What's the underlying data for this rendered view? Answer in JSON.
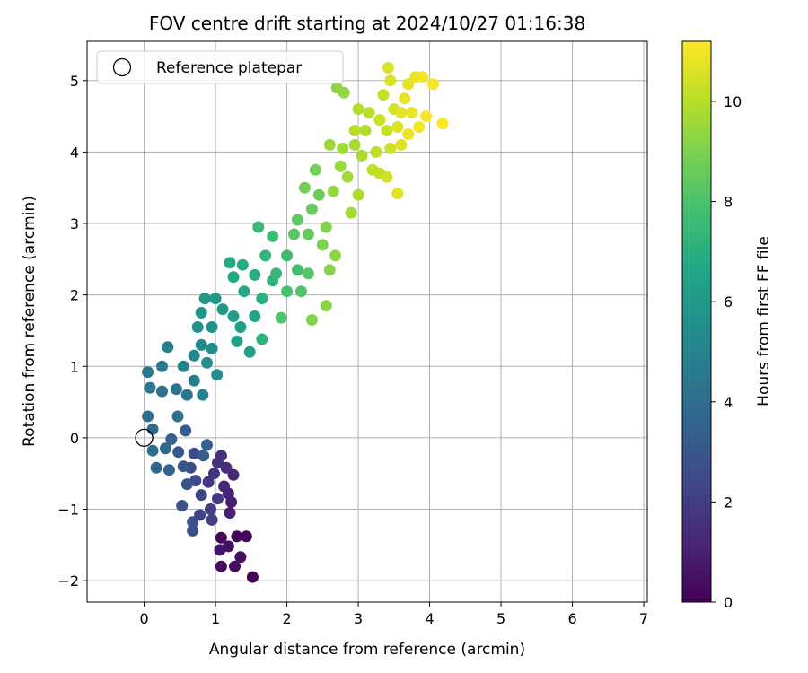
{
  "chart_data": {
    "type": "scatter",
    "title": "FOV centre drift starting at 2024/10/27 01:16:38",
    "xlabel": "Angular distance from reference (arcmin)",
    "ylabel": "Rotation from reference (arcmin)",
    "xlim": [
      -0.8,
      7.05
    ],
    "ylim": [
      -2.3,
      5.55
    ],
    "xticks": [
      0,
      1,
      2,
      3,
      4,
      5,
      6,
      7
    ],
    "yticks": [
      -2,
      -1,
      0,
      1,
      2,
      3,
      4,
      5
    ],
    "xtick_labels": [
      "0",
      "1",
      "2",
      "3",
      "4",
      "5",
      "6",
      "7"
    ],
    "ytick_labels": [
      "−2",
      "−1",
      "0",
      "1",
      "2",
      "3",
      "4",
      "5"
    ],
    "grid": true,
    "legend": {
      "position": "top-left",
      "entries": [
        "Reference platepar"
      ]
    },
    "reference_point": {
      "x": 0,
      "y": 0,
      "marker": "open-circle"
    },
    "colorbar": {
      "label": "Hours from first FF file",
      "range": [
        0,
        11.2
      ],
      "ticks": [
        0,
        2,
        4,
        6,
        8,
        10
      ],
      "tick_labels": [
        "0",
        "2",
        "4",
        "6",
        "8",
        "10"
      ],
      "colormap": "viridis"
    },
    "series": [
      {
        "points": [
          {
            "x": 1.3,
            "y": -1.38,
            "c": 0.1
          },
          {
            "x": 1.43,
            "y": -1.38,
            "c": 0.2
          },
          {
            "x": 1.08,
            "y": -1.4,
            "c": 0.2
          },
          {
            "x": 1.52,
            "y": -1.95,
            "c": 0.1
          },
          {
            "x": 1.08,
            "y": -1.8,
            "c": 0.3
          },
          {
            "x": 1.27,
            "y": -1.8,
            "c": 0.3
          },
          {
            "x": 1.35,
            "y": -1.67,
            "c": 0.4
          },
          {
            "x": 1.18,
            "y": -1.52,
            "c": 0.5
          },
          {
            "x": 1.06,
            "y": -1.57,
            "c": 0.6
          },
          {
            "x": 1.2,
            "y": -1.05,
            "c": 0.9
          },
          {
            "x": 1.22,
            "y": -0.9,
            "c": 1.0
          },
          {
            "x": 1.18,
            "y": -0.78,
            "c": 1.1
          },
          {
            "x": 1.12,
            "y": -0.68,
            "c": 1.2
          },
          {
            "x": 1.25,
            "y": -0.52,
            "c": 1.3
          },
          {
            "x": 1.15,
            "y": -0.42,
            "c": 1.4
          },
          {
            "x": 1.08,
            "y": -0.25,
            "c": 1.5
          },
          {
            "x": 1.03,
            "y": -0.35,
            "c": 1.6
          },
          {
            "x": 0.98,
            "y": -0.5,
            "c": 1.7
          },
          {
            "x": 0.9,
            "y": -0.62,
            "c": 1.8
          },
          {
            "x": 1.03,
            "y": -0.85,
            "c": 1.9
          },
          {
            "x": 0.93,
            "y": -1.0,
            "c": 2.0
          },
          {
            "x": 0.95,
            "y": -1.15,
            "c": 2.1
          },
          {
            "x": 0.78,
            "y": -1.08,
            "c": 2.2
          },
          {
            "x": 0.8,
            "y": -0.8,
            "c": 2.3
          },
          {
            "x": 0.72,
            "y": -0.6,
            "c": 2.4
          },
          {
            "x": 0.65,
            "y": -0.42,
            "c": 2.5
          },
          {
            "x": 0.7,
            "y": -0.22,
            "c": 2.6
          },
          {
            "x": 0.68,
            "y": -1.3,
            "c": 2.6
          },
          {
            "x": 0.68,
            "y": -1.18,
            "c": 2.7
          },
          {
            "x": 0.53,
            "y": -0.95,
            "c": 2.8
          },
          {
            "x": 0.6,
            "y": -0.65,
            "c": 2.9
          },
          {
            "x": 0.55,
            "y": -0.4,
            "c": 3.0
          },
          {
            "x": 0.48,
            "y": -0.2,
            "c": 3.1
          },
          {
            "x": 0.58,
            "y": 0.1,
            "c": 3.2
          },
          {
            "x": 0.83,
            "y": -0.25,
            "c": 3.3
          },
          {
            "x": 0.88,
            "y": -0.1,
            "c": 3.4
          },
          {
            "x": 0.38,
            "y": -0.02,
            "c": 3.5
          },
          {
            "x": 0.35,
            "y": -0.45,
            "c": 3.6
          },
          {
            "x": 0.17,
            "y": -0.42,
            "c": 3.7
          },
          {
            "x": 0.3,
            "y": -0.15,
            "c": 3.8
          },
          {
            "x": 0.12,
            "y": 0.12,
            "c": 3.9
          },
          {
            "x": 0.05,
            "y": 0.3,
            "c": 4.0
          },
          {
            "x": 0.12,
            "y": -0.18,
            "c": 4.0
          },
          {
            "x": 0.47,
            "y": 0.3,
            "c": 4.1
          },
          {
            "x": 0.25,
            "y": 0.65,
            "c": 4.2
          },
          {
            "x": 0.45,
            "y": 0.68,
            "c": 4.3
          },
          {
            "x": 0.6,
            "y": 0.6,
            "c": 4.4
          },
          {
            "x": 0.08,
            "y": 0.7,
            "c": 4.4
          },
          {
            "x": 0.05,
            "y": 0.92,
            "c": 4.5
          },
          {
            "x": 0.25,
            "y": 1.0,
            "c": 4.6
          },
          {
            "x": 0.33,
            "y": 1.27,
            "c": 4.7
          },
          {
            "x": 0.7,
            "y": 0.8,
            "c": 4.8
          },
          {
            "x": 0.82,
            "y": 0.6,
            "c": 4.9
          },
          {
            "x": 0.55,
            "y": 1.0,
            "c": 5.0
          },
          {
            "x": 0.7,
            "y": 1.15,
            "c": 5.1
          },
          {
            "x": 0.8,
            "y": 1.3,
            "c": 5.2
          },
          {
            "x": 0.95,
            "y": 1.25,
            "c": 5.3
          },
          {
            "x": 0.88,
            "y": 1.05,
            "c": 5.4
          },
          {
            "x": 1.02,
            "y": 0.88,
            "c": 5.5
          },
          {
            "x": 0.95,
            "y": 1.55,
            "c": 5.6
          },
          {
            "x": 0.75,
            "y": 1.55,
            "c": 5.7
          },
          {
            "x": 0.8,
            "y": 1.75,
            "c": 5.8
          },
          {
            "x": 0.85,
            "y": 1.95,
            "c": 5.9
          },
          {
            "x": 1.0,
            "y": 1.95,
            "c": 6.0
          },
          {
            "x": 1.1,
            "y": 1.8,
            "c": 6.1
          },
          {
            "x": 1.25,
            "y": 1.7,
            "c": 6.2
          },
          {
            "x": 1.35,
            "y": 1.55,
            "c": 6.3
          },
          {
            "x": 1.3,
            "y": 1.35,
            "c": 6.4
          },
          {
            "x": 1.48,
            "y": 1.2,
            "c": 6.4
          },
          {
            "x": 1.55,
            "y": 1.7,
            "c": 6.5
          },
          {
            "x": 1.4,
            "y": 2.05,
            "c": 6.6
          },
          {
            "x": 1.25,
            "y": 2.25,
            "c": 6.7
          },
          {
            "x": 1.2,
            "y": 2.45,
            "c": 6.8
          },
          {
            "x": 1.38,
            "y": 2.42,
            "c": 6.9
          },
          {
            "x": 1.55,
            "y": 2.28,
            "c": 7.0
          },
          {
            "x": 1.65,
            "y": 1.95,
            "c": 7.1
          },
          {
            "x": 1.65,
            "y": 1.38,
            "c": 7.1
          },
          {
            "x": 1.8,
            "y": 2.2,
            "c": 7.2
          },
          {
            "x": 1.7,
            "y": 2.55,
            "c": 7.3
          },
          {
            "x": 1.85,
            "y": 2.3,
            "c": 7.4
          },
          {
            "x": 1.6,
            "y": 2.95,
            "c": 7.5
          },
          {
            "x": 1.8,
            "y": 2.82,
            "c": 7.6
          },
          {
            "x": 2.0,
            "y": 2.55,
            "c": 7.7
          },
          {
            "x": 2.15,
            "y": 2.35,
            "c": 7.8
          },
          {
            "x": 2.0,
            "y": 2.05,
            "c": 7.9
          },
          {
            "x": 1.92,
            "y": 1.68,
            "c": 8.0
          },
          {
            "x": 2.2,
            "y": 2.05,
            "c": 8.1
          },
          {
            "x": 2.3,
            "y": 2.3,
            "c": 8.2
          },
          {
            "x": 2.1,
            "y": 2.85,
            "c": 8.3
          },
          {
            "x": 2.15,
            "y": 3.05,
            "c": 8.4
          },
          {
            "x": 2.3,
            "y": 2.85,
            "c": 8.5
          },
          {
            "x": 2.35,
            "y": 3.2,
            "c": 8.6
          },
          {
            "x": 2.45,
            "y": 3.4,
            "c": 8.7
          },
          {
            "x": 2.25,
            "y": 3.5,
            "c": 8.8
          },
          {
            "x": 2.4,
            "y": 3.75,
            "c": 8.9
          },
          {
            "x": 2.5,
            "y": 2.7,
            "c": 9.0
          },
          {
            "x": 2.55,
            "y": 2.95,
            "c": 9.1
          },
          {
            "x": 2.35,
            "y": 1.65,
            "c": 9.1
          },
          {
            "x": 2.55,
            "y": 1.85,
            "c": 9.2
          },
          {
            "x": 2.6,
            "y": 2.35,
            "c": 9.2
          },
          {
            "x": 2.68,
            "y": 2.55,
            "c": 9.3
          },
          {
            "x": 2.65,
            "y": 3.45,
            "c": 9.4
          },
          {
            "x": 2.75,
            "y": 3.8,
            "c": 9.5
          },
          {
            "x": 2.6,
            "y": 4.1,
            "c": 9.5
          },
          {
            "x": 2.78,
            "y": 4.05,
            "c": 9.6
          },
          {
            "x": 2.85,
            "y": 3.65,
            "c": 9.6
          },
          {
            "x": 2.95,
            "y": 4.1,
            "c": 9.7
          },
          {
            "x": 2.9,
            "y": 3.15,
            "c": 9.7
          },
          {
            "x": 3.0,
            "y": 3.4,
            "c": 9.8
          },
          {
            "x": 3.05,
            "y": 3.95,
            "c": 9.8
          },
          {
            "x": 3.1,
            "y": 4.3,
            "c": 9.9
          },
          {
            "x": 3.0,
            "y": 4.6,
            "c": 9.9
          },
          {
            "x": 2.95,
            "y": 4.3,
            "c": 10.0
          },
          {
            "x": 3.15,
            "y": 4.55,
            "c": 10.0
          },
          {
            "x": 3.25,
            "y": 4.0,
            "c": 10.1
          },
          {
            "x": 3.2,
            "y": 3.75,
            "c": 10.1
          },
          {
            "x": 3.3,
            "y": 3.7,
            "c": 10.2
          },
          {
            "x": 2.7,
            "y": 4.9,
            "c": 9.3
          },
          {
            "x": 2.8,
            "y": 4.83,
            "c": 9.4
          },
          {
            "x": 3.35,
            "y": 4.8,
            "c": 10.2
          },
          {
            "x": 3.3,
            "y": 4.45,
            "c": 10.3
          },
          {
            "x": 3.4,
            "y": 4.3,
            "c": 10.3
          },
          {
            "x": 3.45,
            "y": 4.05,
            "c": 10.4
          },
          {
            "x": 3.4,
            "y": 3.65,
            "c": 10.4
          },
          {
            "x": 3.5,
            "y": 4.6,
            "c": 10.5
          },
          {
            "x": 3.45,
            "y": 5.0,
            "c": 10.5
          },
          {
            "x": 3.42,
            "y": 5.18,
            "c": 10.6
          },
          {
            "x": 3.55,
            "y": 4.35,
            "c": 10.6
          },
          {
            "x": 3.6,
            "y": 4.1,
            "c": 10.7
          },
          {
            "x": 3.55,
            "y": 3.42,
            "c": 10.7
          },
          {
            "x": 3.65,
            "y": 4.75,
            "c": 10.8
          },
          {
            "x": 3.7,
            "y": 4.95,
            "c": 10.8
          },
          {
            "x": 3.75,
            "y": 4.55,
            "c": 10.9
          },
          {
            "x": 3.8,
            "y": 5.05,
            "c": 10.9
          },
          {
            "x": 3.9,
            "y": 5.05,
            "c": 11.0
          },
          {
            "x": 3.85,
            "y": 4.35,
            "c": 11.0
          },
          {
            "x": 3.95,
            "y": 4.5,
            "c": 11.1
          },
          {
            "x": 4.05,
            "y": 4.95,
            "c": 11.1
          },
          {
            "x": 4.18,
            "y": 4.4,
            "c": 11.2
          },
          {
            "x": 3.7,
            "y": 4.25,
            "c": 10.9
          },
          {
            "x": 3.6,
            "y": 4.55,
            "c": 10.8
          }
        ]
      }
    ]
  }
}
